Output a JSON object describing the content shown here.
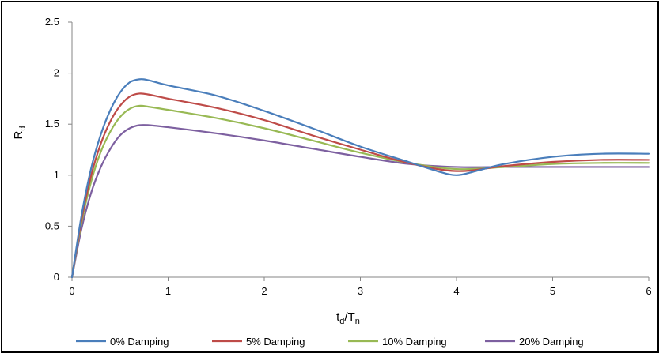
{
  "chart_data": {
    "type": "line",
    "title": "",
    "xlabel": {
      "main": "t",
      "sub1": "d",
      "slash": "/T",
      "sub2": "n"
    },
    "ylabel": {
      "main": "R",
      "sub": "d"
    },
    "xlim": [
      0,
      6
    ],
    "ylim": [
      0,
      2.5
    ],
    "xticks": [
      0,
      1,
      2,
      3,
      4,
      5,
      6
    ],
    "yticks": [
      0,
      0.5,
      1,
      1.5,
      2,
      2.5
    ],
    "xtick_labels": [
      "0",
      "1",
      "2",
      "3",
      "4",
      "5",
      "6"
    ],
    "ytick_labels": [
      "0",
      "0.5",
      "1",
      "1.5",
      "2",
      "2.5"
    ],
    "grid": false,
    "legend": "bottom",
    "series": [
      {
        "name": "0% Damping",
        "color": "#4a7ebb",
        "x": [
          0,
          0.1,
          0.2,
          0.3,
          0.4,
          0.5,
          0.6,
          0.7,
          0.8,
          1.0,
          1.5,
          2.0,
          2.5,
          3.0,
          3.5,
          3.8,
          4.0,
          4.2,
          4.5,
          5.0,
          5.5,
          6.0
        ],
        "y": [
          0,
          0.61,
          1.07,
          1.4,
          1.64,
          1.81,
          1.91,
          1.94,
          1.93,
          1.88,
          1.78,
          1.63,
          1.46,
          1.28,
          1.13,
          1.04,
          1.0,
          1.04,
          1.11,
          1.18,
          1.21,
          1.21
        ]
      },
      {
        "name": "5% Damping",
        "color": "#be4b48",
        "x": [
          0,
          0.1,
          0.2,
          0.3,
          0.4,
          0.5,
          0.6,
          0.7,
          0.8,
          1.0,
          1.5,
          2.0,
          2.5,
          3.0,
          3.5,
          4.0,
          4.5,
          5.0,
          5.5,
          6.0
        ],
        "y": [
          0,
          0.57,
          1.0,
          1.31,
          1.53,
          1.68,
          1.77,
          1.8,
          1.79,
          1.75,
          1.66,
          1.54,
          1.39,
          1.25,
          1.12,
          1.04,
          1.09,
          1.13,
          1.15,
          1.15
        ]
      },
      {
        "name": "10% Damping",
        "color": "#98b954",
        "x": [
          0,
          0.1,
          0.2,
          0.3,
          0.4,
          0.5,
          0.6,
          0.7,
          0.8,
          1.0,
          1.5,
          2.0,
          2.5,
          3.0,
          3.5,
          4.0,
          4.5,
          5.0,
          5.5,
          6.0
        ],
        "y": [
          0,
          0.54,
          0.94,
          1.23,
          1.43,
          1.57,
          1.65,
          1.68,
          1.67,
          1.64,
          1.56,
          1.46,
          1.34,
          1.22,
          1.12,
          1.06,
          1.08,
          1.11,
          1.12,
          1.12
        ]
      },
      {
        "name": "20% Damping",
        "color": "#7d60a0",
        "x": [
          0,
          0.1,
          0.2,
          0.3,
          0.4,
          0.5,
          0.6,
          0.7,
          0.8,
          1.0,
          1.5,
          2.0,
          2.5,
          3.0,
          3.5,
          4.0,
          4.5,
          5.0,
          5.5,
          6.0
        ],
        "y": [
          0,
          0.48,
          0.83,
          1.08,
          1.26,
          1.39,
          1.46,
          1.49,
          1.49,
          1.47,
          1.41,
          1.34,
          1.26,
          1.18,
          1.11,
          1.08,
          1.08,
          1.08,
          1.08,
          1.08
        ]
      }
    ]
  }
}
